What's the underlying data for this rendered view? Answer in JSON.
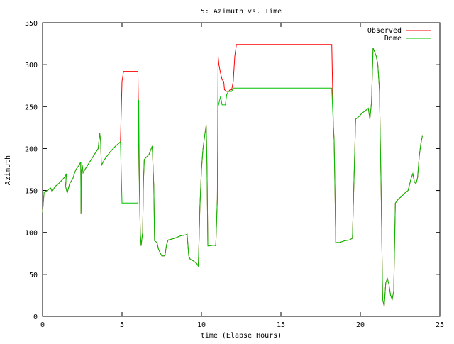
{
  "chart_data": {
    "type": "line",
    "title": "5: Azimuth vs. Time",
    "xlabel": "time (Elapse Hours)",
    "ylabel": "Azimuth",
    "xlim": [
      0,
      25
    ],
    "ylim": [
      0,
      350
    ],
    "x_ticks": [
      0,
      5,
      10,
      15,
      20,
      25
    ],
    "y_ticks": [
      0,
      50,
      100,
      150,
      200,
      250,
      300,
      350
    ],
    "grid": false,
    "legend_position": "top-right",
    "series": [
      {
        "name": "Observed",
        "color": "#ff0000",
        "points": [
          [
            0.0,
            124
          ],
          [
            0.1,
            148
          ],
          [
            0.3,
            150
          ],
          [
            0.5,
            153
          ],
          [
            0.6,
            149
          ],
          [
            0.8,
            155
          ],
          [
            1.0,
            158
          ],
          [
            1.2,
            162
          ],
          [
            1.4,
            166
          ],
          [
            1.5,
            170
          ],
          [
            1.45,
            155
          ],
          [
            1.55,
            147
          ],
          [
            1.7,
            158
          ],
          [
            1.9,
            164
          ],
          [
            2.0,
            170
          ],
          [
            2.1,
            175
          ],
          [
            2.3,
            180
          ],
          [
            2.4,
            184
          ],
          [
            2.42,
            122
          ],
          [
            2.45,
            172
          ],
          [
            2.5,
            180
          ],
          [
            2.55,
            171
          ],
          [
            2.7,
            176
          ],
          [
            2.9,
            182
          ],
          [
            3.1,
            188
          ],
          [
            3.3,
            194
          ],
          [
            3.5,
            200
          ],
          [
            3.6,
            218
          ],
          [
            3.65,
            210
          ],
          [
            3.7,
            180
          ],
          [
            3.9,
            187
          ],
          [
            4.1,
            192
          ],
          [
            4.3,
            197
          ],
          [
            4.6,
            203
          ],
          [
            4.9,
            208
          ],
          [
            5.0,
            280
          ],
          [
            5.1,
            292
          ],
          [
            6.0,
            292
          ],
          [
            6.05,
            230
          ],
          [
            6.1,
            150
          ],
          [
            6.15,
            100
          ],
          [
            6.2,
            84
          ],
          [
            6.3,
            100
          ],
          [
            6.35,
            160
          ],
          [
            6.4,
            187
          ],
          [
            6.7,
            193
          ],
          [
            6.9,
            203
          ],
          [
            7.0,
            156
          ],
          [
            7.05,
            90
          ],
          [
            7.2,
            88
          ],
          [
            7.3,
            80
          ],
          [
            7.5,
            72
          ],
          [
            7.7,
            72
          ],
          [
            7.8,
            85
          ],
          [
            7.9,
            91
          ],
          [
            8.3,
            93
          ],
          [
            8.7,
            96
          ],
          [
            9.0,
            97
          ],
          [
            9.1,
            98
          ],
          [
            9.2,
            72
          ],
          [
            9.3,
            68
          ],
          [
            9.5,
            66
          ],
          [
            9.7,
            63
          ],
          [
            9.8,
            60
          ],
          [
            9.85,
            90
          ],
          [
            9.9,
            130
          ],
          [
            10.0,
            175
          ],
          [
            10.1,
            200
          ],
          [
            10.2,
            215
          ],
          [
            10.3,
            228
          ],
          [
            10.35,
            180
          ],
          [
            10.4,
            84
          ],
          [
            10.5,
            84
          ],
          [
            10.8,
            85
          ],
          [
            10.9,
            84
          ],
          [
            11.0,
            140
          ],
          [
            11.05,
            310
          ],
          [
            11.1,
            300
          ],
          [
            11.2,
            290
          ],
          [
            11.3,
            282
          ],
          [
            11.4,
            280
          ],
          [
            11.45,
            270
          ],
          [
            11.6,
            268
          ],
          [
            11.7,
            268
          ],
          [
            11.8,
            270
          ],
          [
            11.9,
            270
          ],
          [
            12.0,
            280
          ],
          [
            12.1,
            310
          ],
          [
            12.2,
            324
          ],
          [
            18.2,
            324
          ],
          [
            18.3,
            228
          ],
          [
            18.35,
            210
          ],
          [
            18.4,
            150
          ],
          [
            18.45,
            88
          ],
          [
            18.7,
            88
          ],
          [
            19.0,
            90
          ],
          [
            19.3,
            91
          ],
          [
            19.5,
            93
          ],
          [
            19.7,
            235
          ],
          [
            19.9,
            238
          ],
          [
            20.1,
            242
          ],
          [
            20.3,
            245
          ],
          [
            20.5,
            248
          ],
          [
            20.6,
            235
          ],
          [
            20.7,
            255
          ],
          [
            20.8,
            320
          ],
          [
            21.0,
            310
          ],
          [
            21.1,
            300
          ],
          [
            21.2,
            270
          ],
          [
            21.3,
            160
          ],
          [
            21.4,
            20
          ],
          [
            21.5,
            12
          ],
          [
            21.6,
            40
          ],
          [
            21.7,
            45
          ],
          [
            21.8,
            38
          ],
          [
            21.9,
            25
          ],
          [
            22.0,
            20
          ],
          [
            22.1,
            30
          ],
          [
            22.2,
            135
          ],
          [
            22.4,
            140
          ],
          [
            22.6,
            143
          ],
          [
            22.8,
            147
          ],
          [
            23.0,
            150
          ],
          [
            23.2,
            165
          ],
          [
            23.3,
            170
          ],
          [
            23.4,
            160
          ],
          [
            23.5,
            158
          ],
          [
            23.6,
            165
          ],
          [
            23.7,
            190
          ],
          [
            23.8,
            205
          ],
          [
            23.9,
            215
          ]
        ]
      },
      {
        "name": "Dome",
        "color": "#00c000",
        "points": [
          [
            0.0,
            124
          ],
          [
            0.1,
            148
          ],
          [
            0.3,
            150
          ],
          [
            0.5,
            153
          ],
          [
            0.6,
            149
          ],
          [
            0.8,
            155
          ],
          [
            1.0,
            158
          ],
          [
            1.2,
            162
          ],
          [
            1.4,
            166
          ],
          [
            1.5,
            170
          ],
          [
            1.45,
            155
          ],
          [
            1.55,
            147
          ],
          [
            1.7,
            158
          ],
          [
            1.9,
            164
          ],
          [
            2.0,
            170
          ],
          [
            2.1,
            175
          ],
          [
            2.3,
            180
          ],
          [
            2.4,
            184
          ],
          [
            2.42,
            122
          ],
          [
            2.45,
            172
          ],
          [
            2.5,
            180
          ],
          [
            2.55,
            171
          ],
          [
            2.7,
            176
          ],
          [
            2.9,
            182
          ],
          [
            3.1,
            188
          ],
          [
            3.3,
            194
          ],
          [
            3.5,
            200
          ],
          [
            3.6,
            218
          ],
          [
            3.65,
            210
          ],
          [
            3.7,
            180
          ],
          [
            3.9,
            187
          ],
          [
            4.1,
            192
          ],
          [
            4.3,
            197
          ],
          [
            4.6,
            203
          ],
          [
            4.9,
            208
          ],
          [
            5.0,
            135
          ],
          [
            6.0,
            135
          ],
          [
            6.05,
            258
          ],
          [
            6.1,
            150
          ],
          [
            6.15,
            100
          ],
          [
            6.2,
            84
          ],
          [
            6.3,
            100
          ],
          [
            6.35,
            160
          ],
          [
            6.4,
            187
          ],
          [
            6.7,
            193
          ],
          [
            6.9,
            203
          ],
          [
            7.0,
            156
          ],
          [
            7.05,
            90
          ],
          [
            7.2,
            88
          ],
          [
            7.3,
            80
          ],
          [
            7.5,
            72
          ],
          [
            7.7,
            72
          ],
          [
            7.8,
            85
          ],
          [
            7.9,
            91
          ],
          [
            8.3,
            93
          ],
          [
            8.7,
            96
          ],
          [
            9.0,
            97
          ],
          [
            9.1,
            98
          ],
          [
            9.2,
            72
          ],
          [
            9.3,
            68
          ],
          [
            9.5,
            66
          ],
          [
            9.7,
            63
          ],
          [
            9.8,
            60
          ],
          [
            9.85,
            90
          ],
          [
            9.9,
            130
          ],
          [
            10.0,
            175
          ],
          [
            10.1,
            200
          ],
          [
            10.2,
            215
          ],
          [
            10.3,
            228
          ],
          [
            10.35,
            180
          ],
          [
            10.4,
            84
          ],
          [
            10.5,
            84
          ],
          [
            10.8,
            85
          ],
          [
            10.9,
            84
          ],
          [
            11.0,
            140
          ],
          [
            11.05,
            250
          ],
          [
            11.2,
            262
          ],
          [
            11.3,
            252
          ],
          [
            11.5,
            252
          ],
          [
            11.6,
            265
          ],
          [
            11.7,
            268
          ],
          [
            11.9,
            268
          ],
          [
            12.0,
            272
          ],
          [
            18.2,
            272
          ],
          [
            18.3,
            228
          ],
          [
            18.35,
            210
          ],
          [
            18.4,
            150
          ],
          [
            18.45,
            88
          ],
          [
            18.7,
            88
          ],
          [
            19.0,
            90
          ],
          [
            19.3,
            91
          ],
          [
            19.5,
            93
          ],
          [
            19.7,
            235
          ],
          [
            19.9,
            238
          ],
          [
            20.1,
            242
          ],
          [
            20.3,
            245
          ],
          [
            20.5,
            248
          ],
          [
            20.6,
            235
          ],
          [
            20.7,
            255
          ],
          [
            20.8,
            320
          ],
          [
            21.0,
            310
          ],
          [
            21.1,
            300
          ],
          [
            21.2,
            270
          ],
          [
            21.3,
            160
          ],
          [
            21.4,
            20
          ],
          [
            21.5,
            12
          ],
          [
            21.6,
            40
          ],
          [
            21.7,
            45
          ],
          [
            21.8,
            38
          ],
          [
            21.9,
            25
          ],
          [
            22.0,
            20
          ],
          [
            22.1,
            30
          ],
          [
            22.2,
            135
          ],
          [
            22.4,
            140
          ],
          [
            22.6,
            143
          ],
          [
            22.8,
            147
          ],
          [
            23.0,
            150
          ],
          [
            23.2,
            165
          ],
          [
            23.3,
            170
          ],
          [
            23.4,
            160
          ],
          [
            23.5,
            158
          ],
          [
            23.6,
            165
          ],
          [
            23.7,
            190
          ],
          [
            23.8,
            205
          ],
          [
            23.9,
            215
          ]
        ]
      }
    ]
  }
}
